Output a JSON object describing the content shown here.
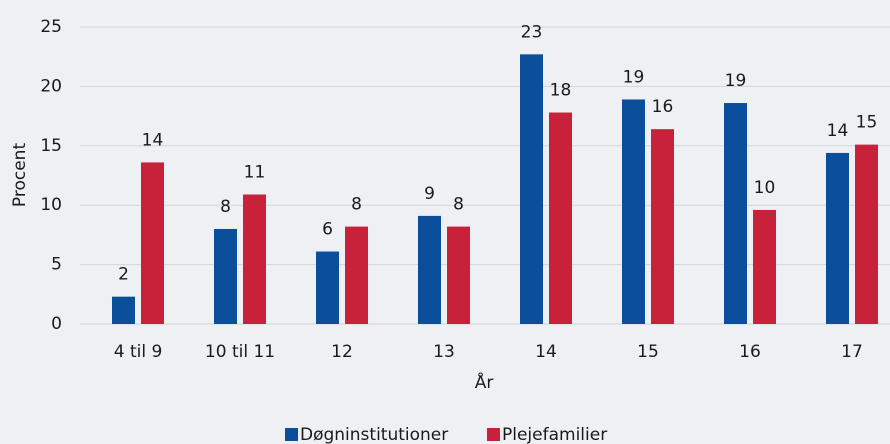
{
  "chart_data": {
    "type": "bar",
    "y_label": "Procent",
    "x_label": "År",
    "categories": [
      "4 til 9",
      "10 til 11",
      "12",
      "13",
      "14",
      "15",
      "16",
      "17"
    ],
    "series": [
      {
        "name": "Døgninstitutioner",
        "color": "#0b4f9c",
        "values": [
          2.3,
          8.0,
          6.1,
          9.1,
          22.7,
          18.9,
          18.6,
          14.4
        ],
        "value_labels": [
          "2",
          "8",
          "6",
          "9",
          "23",
          "19",
          "19",
          "14"
        ]
      },
      {
        "name": "Plejefamilier",
        "color": "#c8213a",
        "values": [
          13.6,
          10.9,
          8.2,
          8.2,
          17.8,
          16.4,
          9.6,
          15.1
        ],
        "value_labels": [
          "14",
          "11",
          "8",
          "8",
          "18",
          "16",
          "10",
          "15"
        ]
      }
    ],
    "ylim": [
      0,
      25
    ],
    "yticks": [
      0,
      5,
      10,
      15,
      20,
      25
    ],
    "grid": true,
    "legend": "bottom"
  }
}
